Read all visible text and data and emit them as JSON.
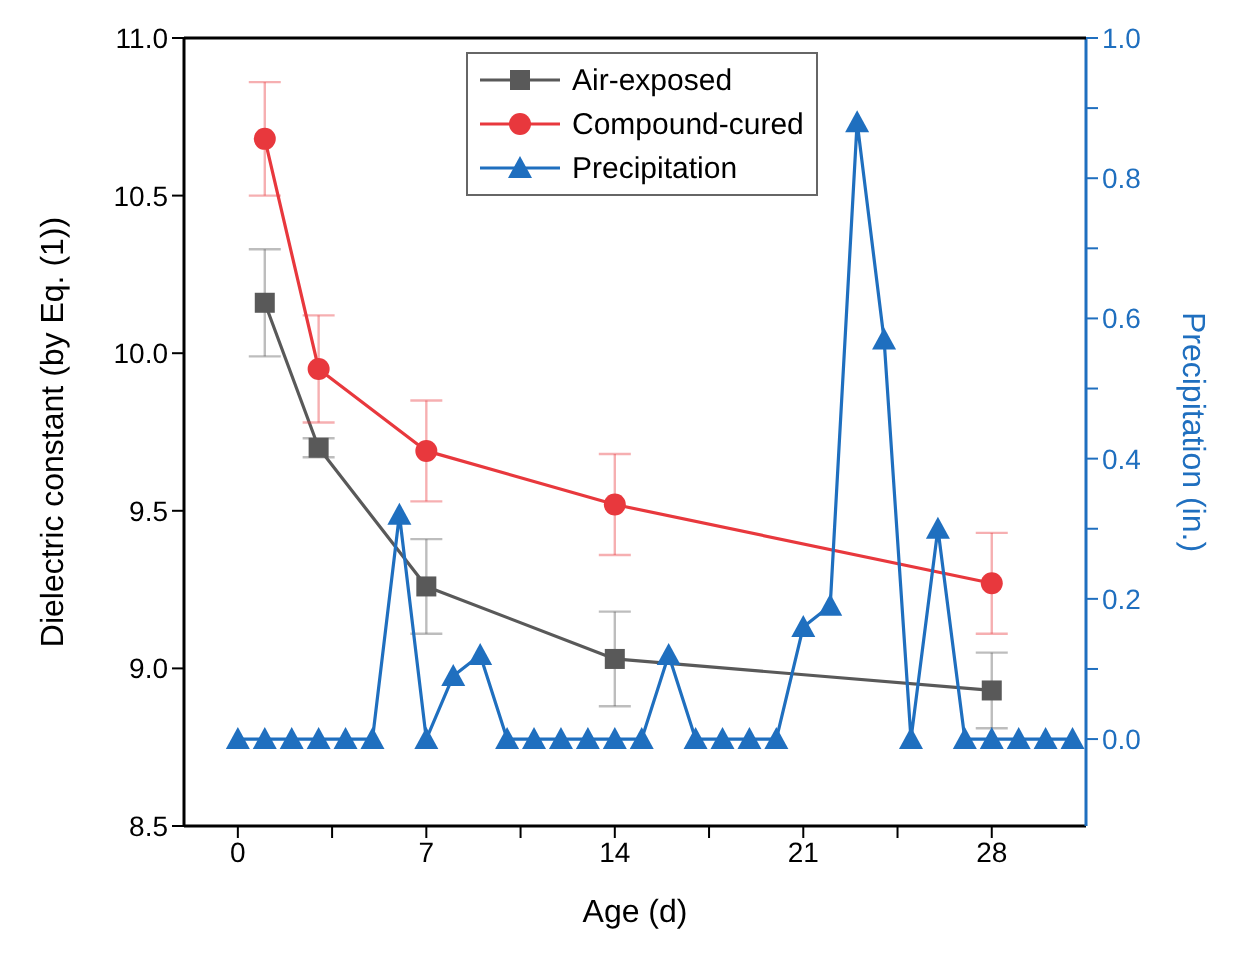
{
  "chart_data": {
    "type": "line",
    "xlabel": "Age (d)",
    "ylabel": "Dielectric constant (by Eq. (1))",
    "y2label": "Precipitation (in.)",
    "xlim": [
      -2,
      31.5
    ],
    "xticks": [
      0,
      {
        "value": 3.5,
        "label": null
      },
      7,
      {
        "value": 10.5,
        "label": null
      },
      14,
      {
        "value": 17.5,
        "label": null
      },
      21,
      {
        "value": 24.5,
        "label": null
      },
      28
    ],
    "ylim": [
      8.5,
      11.0
    ],
    "yticks": [
      8.5,
      {
        "value": 9,
        "label": "9.0"
      },
      9.5,
      {
        "value": 10,
        "label": "10.0"
      },
      10.5,
      {
        "value": 11,
        "label": "11.0"
      }
    ],
    "y2lim": [
      -0.124,
      1.0
    ],
    "y2ticks": [
      {
        "value": 0,
        "label": "0.0"
      },
      {
        "value": 0.1,
        "label": null
      },
      0.2,
      {
        "value": 0.3,
        "label": null
      },
      0.4,
      {
        "value": 0.5,
        "label": null
      },
      0.6,
      {
        "value": 0.7,
        "label": null
      },
      0.8,
      {
        "value": 0.9,
        "label": null
      },
      {
        "value": 1,
        "label": "1.0"
      }
    ],
    "legend": "top",
    "series": [
      {
        "name": "Air-exposed",
        "color": "#595959",
        "marker": "square",
        "x": [
          1,
          3,
          7,
          14,
          28
        ],
        "values": [
          10.16,
          9.7,
          9.26,
          9.03,
          8.93
        ],
        "errors": [
          0.17,
          0.03,
          0.15,
          0.15,
          0.12
        ]
      },
      {
        "name": "Compound-cured",
        "color": "#e8383d",
        "marker": "circle",
        "x": [
          1,
          3,
          7,
          14,
          28
        ],
        "values": [
          10.68,
          9.95,
          9.69,
          9.52,
          9.27
        ],
        "errors": [
          0.18,
          0.17,
          0.16,
          0.16,
          0.16
        ]
      },
      {
        "name": "Precipitation",
        "color": "#1f6fbf",
        "marker": "triangle",
        "axis": "y2",
        "x": [
          0,
          1,
          2,
          3,
          4,
          5,
          6,
          7,
          8,
          9,
          10,
          11,
          12,
          13,
          14,
          15,
          16,
          17,
          18,
          19,
          20,
          21,
          22,
          23,
          24,
          25,
          26,
          27,
          28,
          29,
          30,
          31
        ],
        "values": [
          0,
          0,
          0,
          0,
          0,
          0,
          0.32,
          0,
          0.09,
          0.12,
          0,
          0,
          0,
          0,
          0,
          0,
          0.12,
          0,
          0,
          0,
          0,
          0.16,
          0.19,
          0.88,
          0.57,
          0,
          0.3,
          0,
          0,
          0,
          0,
          0
        ]
      }
    ]
  }
}
